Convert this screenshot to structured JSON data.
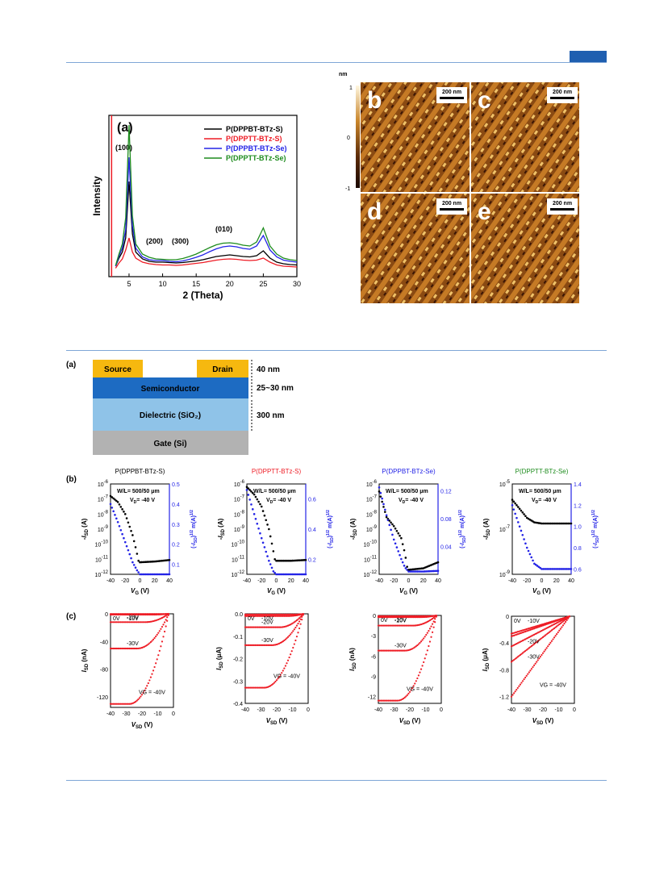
{
  "colors": {
    "black": "#000000",
    "red": "#ee1c25",
    "blue": "#2323e6",
    "green": "#1e8c1e",
    "header_rule": "#7fa6d6",
    "header_tab": "#1f5fb0",
    "source_drain": "#f6b80f",
    "semiconductor": "#1d6bc2",
    "dielectric": "#8fc3e8",
    "gate": "#b2b2b2"
  },
  "xrd": {
    "panel_label": "(a)",
    "peaks": {
      "p100": "(100)",
      "p200": "(200)",
      "p300": "(300)",
      "p010": "(010)"
    },
    "chart_data": {
      "type": "line",
      "xlabel": "2 (Theta)",
      "ylabel": "Intensity",
      "xlim": [
        2,
        30
      ],
      "xticks": [
        "5",
        "10",
        "15",
        "20",
        "25",
        "30"
      ],
      "legend": "top-right",
      "x": [
        3,
        3.5,
        4,
        4.5,
        5,
        5.5,
        6,
        7,
        8,
        9,
        10,
        11,
        12,
        13,
        14,
        15,
        16,
        17,
        18,
        19,
        20,
        21,
        22,
        23,
        24,
        25,
        26,
        27,
        28,
        29,
        30
      ],
      "series": [
        {
          "name": "P(DPPBT-BTz-S)",
          "color": "#000000",
          "values": [
            0.1,
            0.3,
            0.45,
            0.8,
            2.2,
            0.9,
            0.45,
            0.28,
            0.22,
            0.2,
            0.2,
            0.19,
            0.18,
            0.19,
            0.21,
            0.23,
            0.26,
            0.3,
            0.34,
            0.36,
            0.38,
            0.36,
            0.34,
            0.33,
            0.36,
            0.48,
            0.3,
            0.2,
            0.16,
            0.14,
            0.13
          ]
        },
        {
          "name": "P(DPPTT-BTz-S)",
          "color": "#ee1c25",
          "values": [
            0.05,
            0.18,
            0.28,
            0.5,
            0.8,
            0.45,
            0.3,
            0.2,
            0.16,
            0.14,
            0.13,
            0.13,
            0.12,
            0.13,
            0.15,
            0.17,
            0.19,
            0.22,
            0.25,
            0.27,
            0.28,
            0.27,
            0.25,
            0.24,
            0.25,
            0.3,
            0.2,
            0.13,
            0.1,
            0.09,
            0.08
          ]
        },
        {
          "name": "P(DPPBT-BTz-Se)",
          "color": "#2323e6",
          "values": [
            0.1,
            0.35,
            0.55,
            1.0,
            2.8,
            1.1,
            0.55,
            0.33,
            0.26,
            0.24,
            0.24,
            0.22,
            0.21,
            0.23,
            0.27,
            0.32,
            0.38,
            0.46,
            0.53,
            0.58,
            0.6,
            0.58,
            0.54,
            0.52,
            0.6,
            0.86,
            0.5,
            0.33,
            0.25,
            0.22,
            0.2
          ]
        },
        {
          "name": "P(DPPTT-BTz-Se)",
          "color": "#1e8c1e",
          "values": [
            0.12,
            0.4,
            0.65,
            1.3,
            3.6,
            1.35,
            0.65,
            0.4,
            0.32,
            0.28,
            0.27,
            0.26,
            0.26,
            0.29,
            0.34,
            0.4,
            0.48,
            0.56,
            0.63,
            0.67,
            0.68,
            0.66,
            0.62,
            0.6,
            0.7,
            1.05,
            0.6,
            0.4,
            0.3,
            0.26,
            0.24
          ]
        }
      ]
    }
  },
  "afm": {
    "unit": "nm",
    "ticks": [
      "1",
      "0",
      "-1"
    ],
    "panels": [
      {
        "label": "b",
        "scale": "200 nm"
      },
      {
        "label": "c",
        "scale": "200 nm"
      },
      {
        "label": "d",
        "scale": "200 nm"
      },
      {
        "label": "e",
        "scale": "200 nm"
      }
    ]
  },
  "device": {
    "panel_label": "(a)",
    "source": "Source",
    "drain": "Drain",
    "semiconductor": "Semiconductor",
    "dielectric": "Dielectric (SiO₂)",
    "gate": "Gate (Si)",
    "thick_sd": "40 nm",
    "thick_semi": "25~30 nm",
    "thick_diel": "300 nm"
  },
  "transfer": {
    "row_label": "(b)",
    "chart_data": [
      {
        "type": "scatter",
        "title": "P(DPPBT-BTz-S)",
        "title_color": "#000000",
        "wl": "W/L= 500/50  μm",
        "vd": "V",
        "vd_sub": "D",
        "vd_rest": "= -40 V",
        "xlabel": "VG (V)",
        "xlim": [
          -40,
          40
        ],
        "xticks": [
          "-40",
          "-20",
          "0",
          "20",
          "40"
        ],
        "yleft_log": [
          -12,
          -6
        ],
        "yleft_ticks": [
          "10-6",
          "10-7",
          "10-8",
          "10-9",
          "10-10",
          "10-11",
          "10-12"
        ],
        "yright": [
          0.05,
          0.5
        ],
        "yright_ticks": [
          {
            "v": 0.1,
            "t": "0.1"
          },
          {
            "v": 0.2,
            "t": "0.2"
          },
          {
            "v": 0.3,
            "t": "0.3"
          },
          {
            "v": 0.4,
            "t": "0.4"
          },
          {
            "v": 0.5,
            "t": "0.5"
          }
        ],
        "log_current": [
          [
            -40,
            -6.8
          ],
          [
            -30,
            -7.2
          ],
          [
            -20,
            -8.0
          ],
          [
            -10,
            -9.4
          ],
          [
            -5,
            -10.4
          ],
          [
            -2,
            -11.1
          ],
          [
            0,
            -11.2
          ],
          [
            20,
            -11.15
          ],
          [
            40,
            -11.05
          ]
        ],
        "sqrt_current": [
          [
            -40,
            0.4
          ],
          [
            -30,
            0.31
          ],
          [
            -20,
            0.21
          ],
          [
            -10,
            0.11
          ],
          [
            -4,
            0.07
          ],
          [
            0,
            0.05
          ],
          [
            40,
            0.05
          ]
        ]
      },
      {
        "type": "scatter",
        "title": "P(DPPTT-BTz-S)",
        "title_color": "#ee1c25",
        "wl": "W/L= 500/50  μm",
        "vd": "V",
        "vd_sub": "D",
        "vd_rest": "= -40 V",
        "xlabel": "VG (V)",
        "xlim": [
          -40,
          40
        ],
        "xticks": [
          "-40",
          "-20",
          "0",
          "20",
          "40"
        ],
        "yleft_log": [
          -12,
          -6
        ],
        "yleft_ticks": [
          "10-6",
          "10-7",
          "10-8",
          "10-9",
          "10-10",
          "10-11",
          "10-12"
        ],
        "yright": [
          0.1,
          0.7
        ],
        "yright_ticks": [
          {
            "v": 0.2,
            "t": "0.2"
          },
          {
            "v": 0.4,
            "t": "0.4"
          },
          {
            "v": 0.6,
            "t": "0.6"
          }
        ],
        "log_current": [
          [
            -40,
            -6.2
          ],
          [
            -30,
            -6.7
          ],
          [
            -20,
            -7.5
          ],
          [
            -10,
            -9.0
          ],
          [
            -5,
            -10.2
          ],
          [
            -2,
            -11.0
          ],
          [
            0,
            -11.1
          ],
          [
            20,
            -11.1
          ],
          [
            40,
            -11.05
          ]
        ],
        "sqrt_current": [
          [
            -40,
            0.66
          ],
          [
            -30,
            0.5
          ],
          [
            -20,
            0.34
          ],
          [
            -10,
            0.19
          ],
          [
            -4,
            0.12
          ],
          [
            0,
            0.1
          ],
          [
            40,
            0.1
          ]
        ]
      },
      {
        "type": "scatter",
        "title": "P(DPPBT-BTz-Se)",
        "title_color": "#2323e6",
        "wl": "W/L= 500/50  μm",
        "vd": "V",
        "vd_sub": "D",
        "vd_rest": "= -40 V",
        "xlabel": "VG (V)",
        "xlim": [
          -40,
          40
        ],
        "xticks": [
          "-40",
          "-20",
          "0",
          "20",
          "40"
        ],
        "yleft_log": [
          -12,
          -6
        ],
        "yleft_ticks": [
          "10-6",
          "10-7",
          "10-8",
          "10-9",
          "10-10",
          "10-11",
          "10-12"
        ],
        "yright": [
          0.0,
          0.13
        ],
        "yright_ticks": [
          {
            "v": 0.04,
            "t": "0.04"
          },
          {
            "v": 0.08,
            "t": "0.08"
          },
          {
            "v": 0.12,
            "t": "0.12"
          }
        ],
        "log_current": [
          [
            -40,
            -6.5
          ],
          [
            -30,
            -8.2
          ],
          [
            -20,
            -8.8
          ],
          [
            -10,
            -9.6
          ],
          [
            -5,
            -10.6
          ],
          [
            -2,
            -11.5
          ],
          [
            0,
            -11.7
          ],
          [
            20,
            -11.6
          ],
          [
            40,
            -11.2
          ]
        ],
        "sqrt_current": [
          [
            -40,
            0.125
          ],
          [
            -30,
            0.085
          ],
          [
            -20,
            0.05
          ],
          [
            -10,
            0.022
          ],
          [
            -5,
            0.01
          ],
          [
            0,
            0.004
          ],
          [
            20,
            0.004
          ],
          [
            40,
            0.005
          ]
        ]
      },
      {
        "type": "scatter",
        "title": "P(DPPTT-BTz-Se)",
        "title_color": "#1e8c1e",
        "wl": "W/L= 500/50  μm",
        "vd": "V",
        "vd_sub": "D",
        "vd_rest": "= -40 V",
        "xlabel": "VG (V)",
        "xlim": [
          -40,
          40
        ],
        "xticks": [
          "-40",
          "-20",
          "0",
          "20",
          "40"
        ],
        "yleft_log": [
          -9,
          -5
        ],
        "yleft_ticks": [
          "10-5",
          "10-7",
          "10-9"
        ],
        "yright": [
          0.55,
          1.4
        ],
        "yright_ticks": [
          {
            "v": 0.6,
            "t": "0.6"
          },
          {
            "v": 0.8,
            "t": "0.8"
          },
          {
            "v": 1.0,
            "t": "1.0"
          },
          {
            "v": 1.2,
            "t": "1.2"
          },
          {
            "v": 1.4,
            "t": "1.4"
          }
        ],
        "log_current": [
          [
            -40,
            -5.7
          ],
          [
            -30,
            -6.1
          ],
          [
            -20,
            -6.5
          ],
          [
            -10,
            -6.7
          ],
          [
            0,
            -6.75
          ],
          [
            20,
            -6.75
          ],
          [
            40,
            -6.75
          ]
        ],
        "sqrt_current": [
          [
            -40,
            1.2
          ],
          [
            -30,
            1.0
          ],
          [
            -20,
            0.8
          ],
          [
            -10,
            0.65
          ],
          [
            0,
            0.6
          ],
          [
            20,
            0.6
          ],
          [
            40,
            0.6
          ]
        ]
      }
    ]
  },
  "output": {
    "row_label": "(c)",
    "chart_data": [
      {
        "type": "scatter",
        "ylabel_unit": "(nA)",
        "xlabel": "VSD (V)",
        "xlim": [
          -40,
          0
        ],
        "xticks": [
          "-40",
          "-30",
          "-20",
          "-10",
          "0"
        ],
        "ylim": [
          -135,
          0
        ],
        "yticks": [
          {
            "v": 0,
            "t": "0"
          },
          {
            "v": -40,
            "t": "-40"
          },
          {
            "v": -80,
            "t": "-80"
          },
          {
            "v": -120,
            "t": "-120"
          }
        ],
        "curves": [
          {
            "label": "0V",
            "sat": -0.3
          },
          {
            "label": "-10V",
            "sat": -1.2
          },
          {
            "label": "-20V",
            "sat": -12
          },
          {
            "label": "-30V",
            "sat": -50
          },
          {
            "label": "VG = -40V",
            "sat": -130
          }
        ]
      },
      {
        "type": "scatter",
        "ylabel_unit": "(μA)",
        "xlabel": "VSD (V)",
        "xlim": [
          -40,
          0
        ],
        "xticks": [
          "-40",
          "-30",
          "-20",
          "-10",
          "0"
        ],
        "ylim": [
          -0.4,
          0
        ],
        "yticks": [
          {
            "v": 0,
            "t": "0.0"
          },
          {
            "v": -0.1,
            "t": "-0.1"
          },
          {
            "v": -0.2,
            "t": "-0.2"
          },
          {
            "v": -0.3,
            "t": "-0.3"
          },
          {
            "v": -0.4,
            "t": "-0.4"
          }
        ],
        "curves": [
          {
            "label": "0V",
            "sat": -0.003
          },
          {
            "label": "-10V",
            "sat": -0.01
          },
          {
            "label": "-20V",
            "sat": -0.06
          },
          {
            "label": "-30V",
            "sat": -0.14
          },
          {
            "label": "VG = -40V",
            "sat": -0.33
          }
        ]
      },
      {
        "type": "scatter",
        "ylabel_unit": "(nA)",
        "xlabel": "VSD (V)",
        "xlim": [
          -40,
          0
        ],
        "xticks": [
          "-40",
          "-30",
          "-20",
          "-10",
          "0"
        ],
        "ylim": [
          -13,
          0
        ],
        "yticks": [
          {
            "v": 0,
            "t": "0"
          },
          {
            "v": -3,
            "t": "-3"
          },
          {
            "v": -6,
            "t": "-6"
          },
          {
            "v": -9,
            "t": "-9"
          },
          {
            "v": -12,
            "t": "-12"
          }
        ],
        "curves": [
          {
            "label": "0V",
            "sat": -0.1
          },
          {
            "label": "-10V",
            "sat": -0.25
          },
          {
            "label": "-20V",
            "sat": -1.5
          },
          {
            "label": "-30V",
            "sat": -5.2
          },
          {
            "label": "VG = -40V",
            "sat": -12.6
          }
        ]
      },
      {
        "type": "scatter",
        "ylabel_unit": "(μA)",
        "xlabel": "VSD (V)",
        "xlim": [
          -40,
          0
        ],
        "xticks": [
          "-40",
          "-30",
          "-20",
          "-10",
          "0"
        ],
        "ylim": [
          -1.3,
          0
        ],
        "yticks": [
          {
            "v": 0,
            "t": "0"
          },
          {
            "v": -0.4,
            "t": "-0.4"
          },
          {
            "v": -0.8,
            "t": "-0.8"
          },
          {
            "v": -1.2,
            "t": "-1.2"
          }
        ],
        "curves": [
          {
            "label": "0V",
            "sat": -0.26,
            "lin": true
          },
          {
            "label": "-10V",
            "sat": -0.3,
            "lin": true
          },
          {
            "label": "-20V",
            "sat": -0.45,
            "lin": true
          },
          {
            "label": "-30V",
            "sat": -0.68,
            "lin": true
          },
          {
            "label": "VG = -40V",
            "sat": -1.2,
            "lin": true
          }
        ]
      }
    ]
  }
}
